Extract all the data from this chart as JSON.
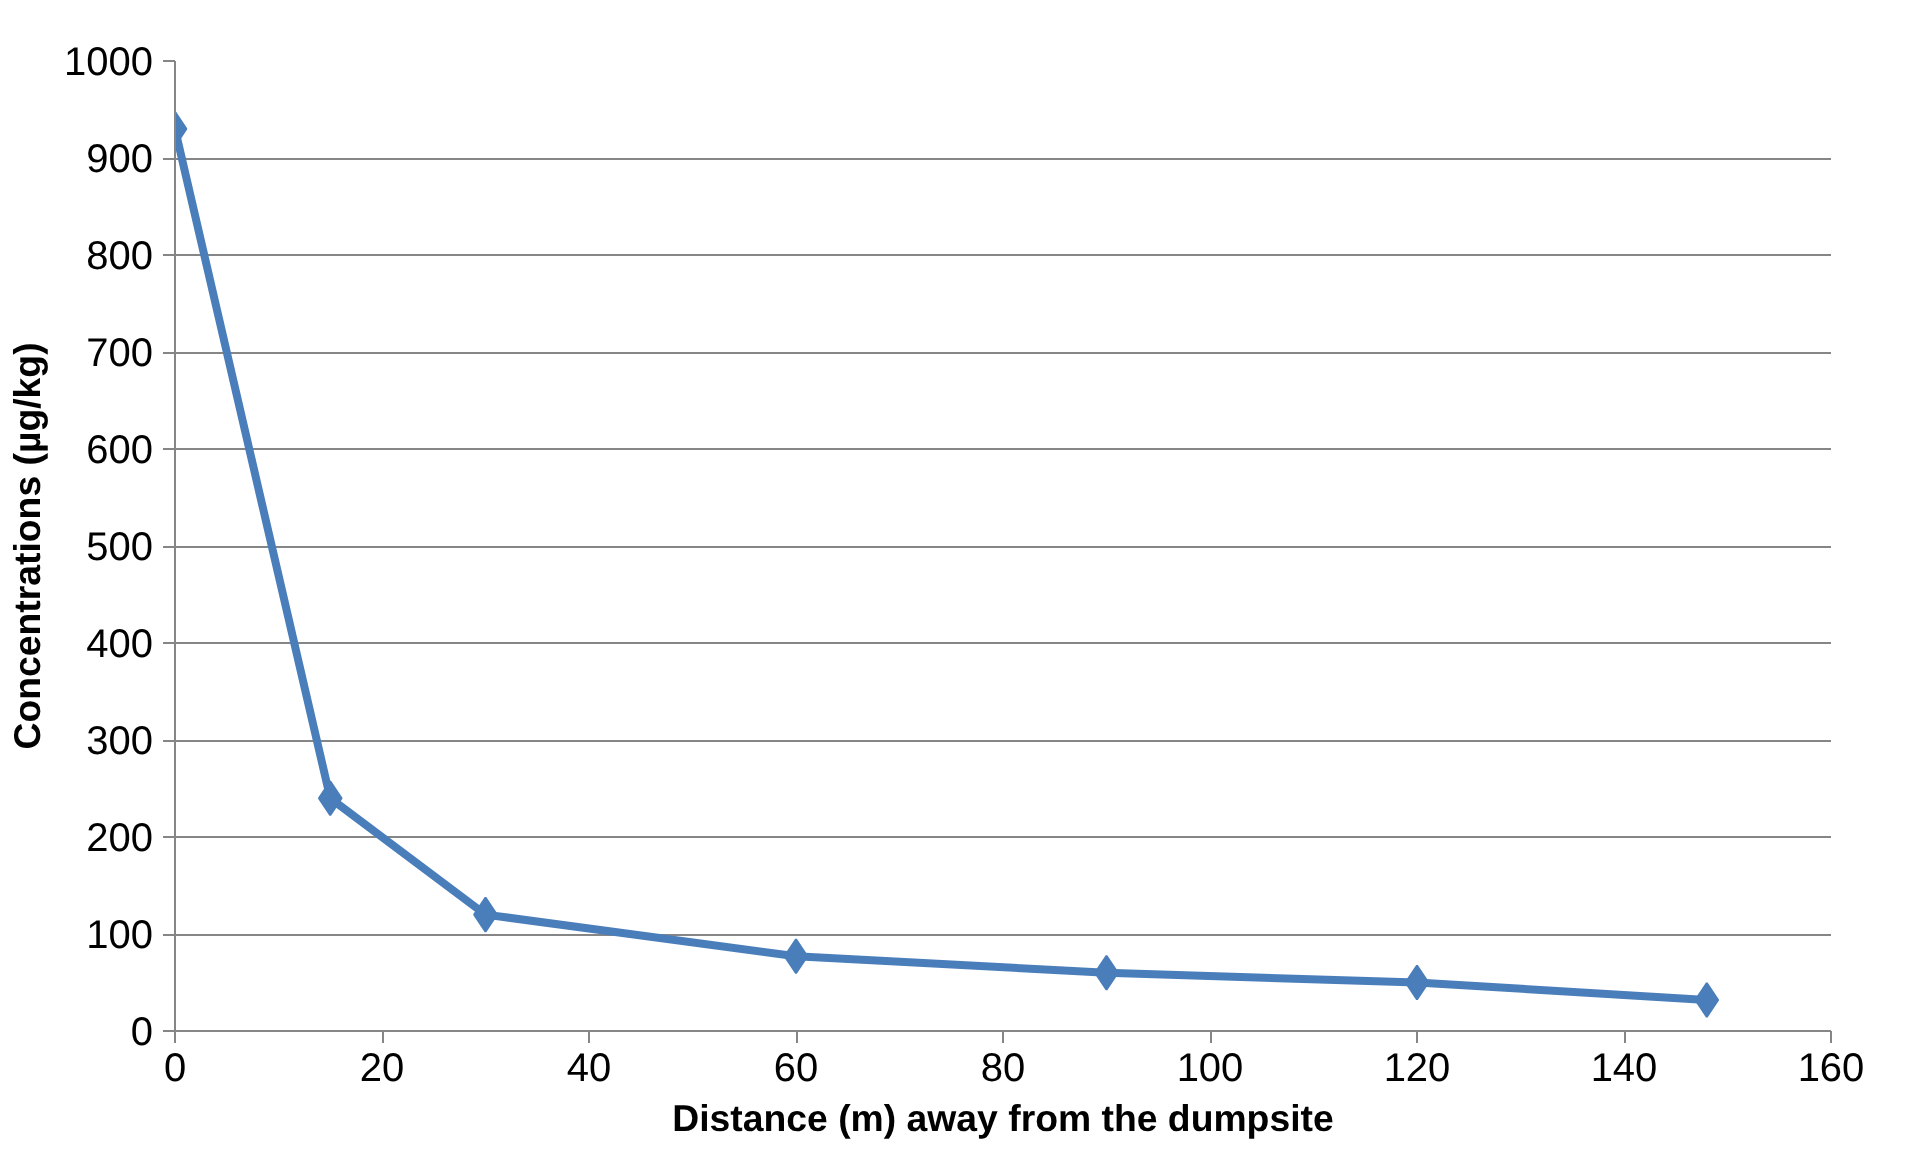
{
  "chart_data": {
    "type": "line",
    "xlabel": "Distance (m) away from the dumpsite",
    "ylabel": "Concentrations (µg/kg)",
    "x": [
      0,
      15,
      30,
      60,
      90,
      120,
      148
    ],
    "series": [
      {
        "color": "#4a7ebb",
        "values": [
          930,
          240,
          120,
          77,
          60,
          50,
          32
        ]
      }
    ],
    "xlim": [
      0,
      160
    ],
    "xticks": [
      0,
      20,
      40,
      60,
      80,
      100,
      120,
      140,
      160
    ],
    "ylim": [
      0,
      1000
    ],
    "yticks": [
      0,
      100,
      200,
      300,
      400,
      500,
      600,
      700,
      800,
      900,
      1000
    ],
    "grid": "y",
    "marker": "diamond",
    "line_style": "solid"
  }
}
